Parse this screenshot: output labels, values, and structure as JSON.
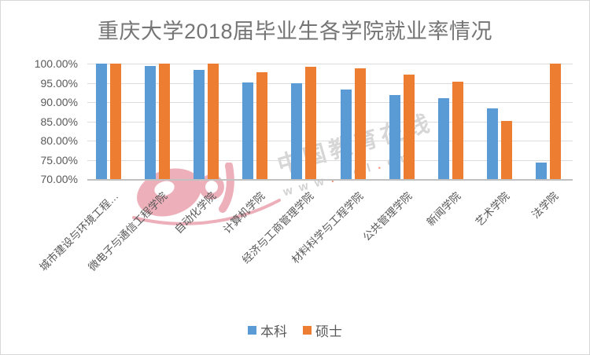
{
  "title": "重庆大学2018届毕业生各学院就业率情况",
  "colors": {
    "undergraduate_blue": "#5B9BD5",
    "master_orange": "#ED7D31",
    "gridline": "#DCDCDC",
    "axis_text": "#595959",
    "title_text": "#757575",
    "watermark_red": "#D6425C"
  },
  "watermark": {
    "brand_text": "中国教育在线",
    "url_text": "www.eol.cn",
    "logo_name": "eol-logo"
  },
  "chart_data": {
    "type": "bar",
    "title": "重庆大学2018届毕业生各学院就业率情况",
    "categories": [
      "城市建设与环境工程…",
      "微电子与通信工程学院",
      "自动化学院",
      "计算机学院",
      "经济与工商管理学院",
      "材料科学与工程学院",
      "公共管理学院",
      "新闻学院",
      "艺术学院",
      "法学院"
    ],
    "series": [
      {
        "name": "本科",
        "color": "#5B9BD5",
        "values": [
          100.0,
          99.3,
          98.3,
          95.1,
          94.9,
          93.3,
          91.9,
          91.0,
          88.3,
          74.2
        ]
      },
      {
        "name": "硕士",
        "color": "#ED7D31",
        "values": [
          100.0,
          100.0,
          100.0,
          97.8,
          99.2,
          98.7,
          97.2,
          95.4,
          85.1,
          100.0
        ]
      }
    ],
    "xlabel": "",
    "ylabel": "",
    "ylim": [
      70,
      100
    ],
    "ytick_labels": [
      "100.00%",
      "95.00%",
      "90.00%",
      "85.00%",
      "80.00%",
      "75.00%",
      "70.00%"
    ],
    "grid": true,
    "legend_position": "bottom",
    "x_label_rotation_deg": 45
  }
}
